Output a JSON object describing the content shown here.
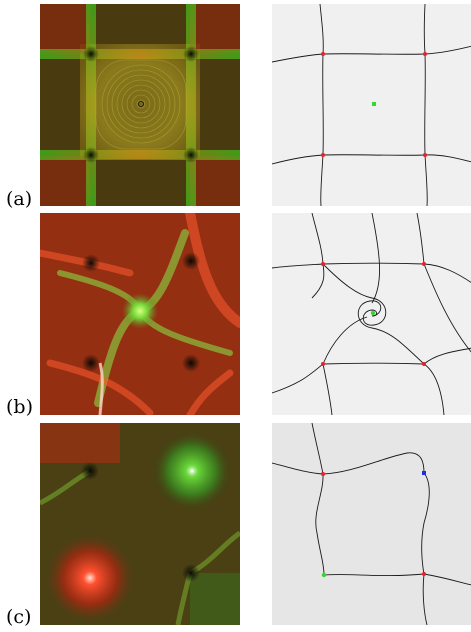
{
  "figure": {
    "rows": [
      {
        "label": "(a)",
        "critical_points": [
          {
            "type": "saddle",
            "color": "#e8202a"
          },
          {
            "type": "saddle",
            "color": "#e8202a"
          },
          {
            "type": "saddle",
            "color": "#e8202a"
          },
          {
            "type": "saddle",
            "color": "#e8202a"
          },
          {
            "type": "center",
            "color": "#30d830"
          }
        ]
      },
      {
        "label": "(b)",
        "critical_points": [
          {
            "type": "saddle",
            "color": "#e8202a"
          },
          {
            "type": "saddle",
            "color": "#e8202a"
          },
          {
            "type": "saddle",
            "color": "#e8202a"
          },
          {
            "type": "saddle",
            "color": "#e8202a"
          },
          {
            "type": "spiral",
            "color": "#30d830"
          }
        ]
      },
      {
        "label": "(c)",
        "critical_points": [
          {
            "type": "saddle",
            "color": "#e8202a"
          },
          {
            "type": "saddle",
            "color": "#e8202a"
          },
          {
            "type": "source",
            "color": "#2030e0"
          },
          {
            "type": "sink",
            "color": "#30d830"
          }
        ]
      }
    ],
    "colors": {
      "topology_background_a": "#f0f0f0",
      "topology_background_b": "#f0f0f0",
      "topology_background_c": "#e6e6e6",
      "separatrix": "#1a1a1a",
      "saddle": "#e8202a",
      "center": "#30d830",
      "source": "#2030e0",
      "lic_dark": "#2a2410",
      "lic_red": "#e83a14",
      "lic_green": "#3cd21e"
    }
  }
}
